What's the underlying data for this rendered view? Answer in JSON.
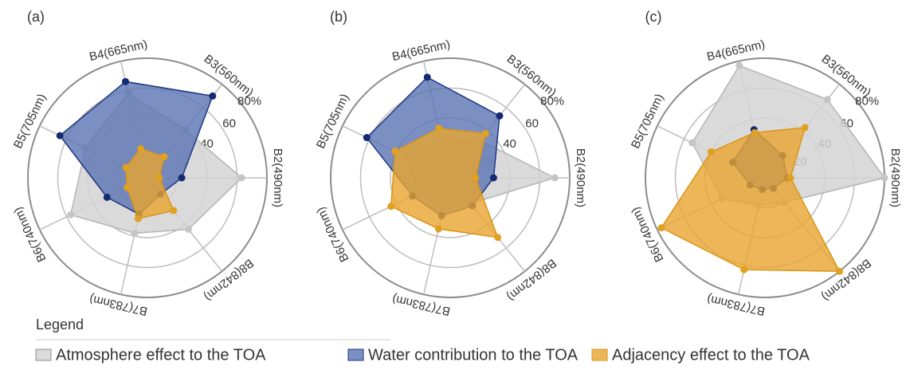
{
  "chart_data": [
    {
      "type": "radar",
      "title": "(a)",
      "legend_title": "Legend",
      "categories": [
        "B2(490nm)",
        "B3(560nm)",
        "B4(665nm)",
        "B5(705nm)",
        "B6(740nm)",
        "B7(783nm)",
        "B8(842nm)"
      ],
      "ylim": [
        0,
        80
      ],
      "yticks": [
        20,
        40,
        60,
        {
          "value": 80,
          "label": "80%"
        }
      ],
      "series": [
        {
          "name": "Atmosphere effect to the TOA",
          "color": "#d4d4d4",
          "values": [
            63,
            41,
            58,
            46,
            57,
            38,
            44
          ]
        },
        {
          "name": "Water contribution to the TOA",
          "color": "#5a73b3",
          "values": [
            23,
            70,
            66,
            65,
            30,
            25,
            14
          ]
        },
        {
          "name": "Adjacency effect to the TOA",
          "color": "#e8a530",
          "values": [
            8,
            18,
            20,
            16,
            15,
            28,
            28
          ]
        }
      ]
    },
    {
      "type": "radar",
      "title": "(b)",
      "categories": [
        "B2(490nm)",
        "B3(560nm)",
        "B4(665nm)",
        "B5(705nm)",
        "B6(740nm)",
        "B7(783nm)",
        "B8(842nm)"
      ],
      "ylim": [
        0,
        80
      ],
      "yticks": [
        20,
        40,
        60,
        {
          "value": 80,
          "label": "80%"
        }
      ],
      "series": [
        {
          "name": "Atmosphere effect to the TOA",
          "color": "#d4d4d4",
          "values": [
            70,
            32,
            26,
            33,
            23,
            22,
            22
          ]
        },
        {
          "name": "Water contribution to the TOA",
          "color": "#5a73b3",
          "values": [
            29,
            53,
            69,
            62,
            28,
            26,
            24
          ]
        },
        {
          "name": "Adjacency effect to the TOA",
          "color": "#e8a530",
          "values": [
            17,
            38,
            34,
            41,
            44,
            35,
            51
          ]
        }
      ]
    },
    {
      "type": "radar",
      "title": "(c)",
      "categories": [
        "B2(490nm)",
        "B3(560nm)",
        "B4(665nm)",
        "B5(705nm)",
        "B6(740nm)",
        "B7(783nm)",
        "B8(842nm)"
      ],
      "ylim": [
        0,
        80
      ],
      "yticks": [
        20,
        40,
        60,
        {
          "value": 80,
          "label": "80%"
        }
      ],
      "series": [
        {
          "name": "Atmosphere effect to the TOA",
          "color": "#d4d4d4",
          "values": [
            80,
            67,
            77,
            54,
            32,
            19,
            21
          ]
        },
        {
          "name": "Water contribution to the TOA",
          "color": "#5a73b3",
          "values": [
            15,
            19,
            33,
            24,
            11,
            8,
            9
          ]
        },
        {
          "name": "Adjacency effect to the TOA",
          "color": "#e8a530",
          "values": [
            17,
            43,
            31,
            40,
            77,
            63,
            80
          ]
        }
      ]
    }
  ]
}
